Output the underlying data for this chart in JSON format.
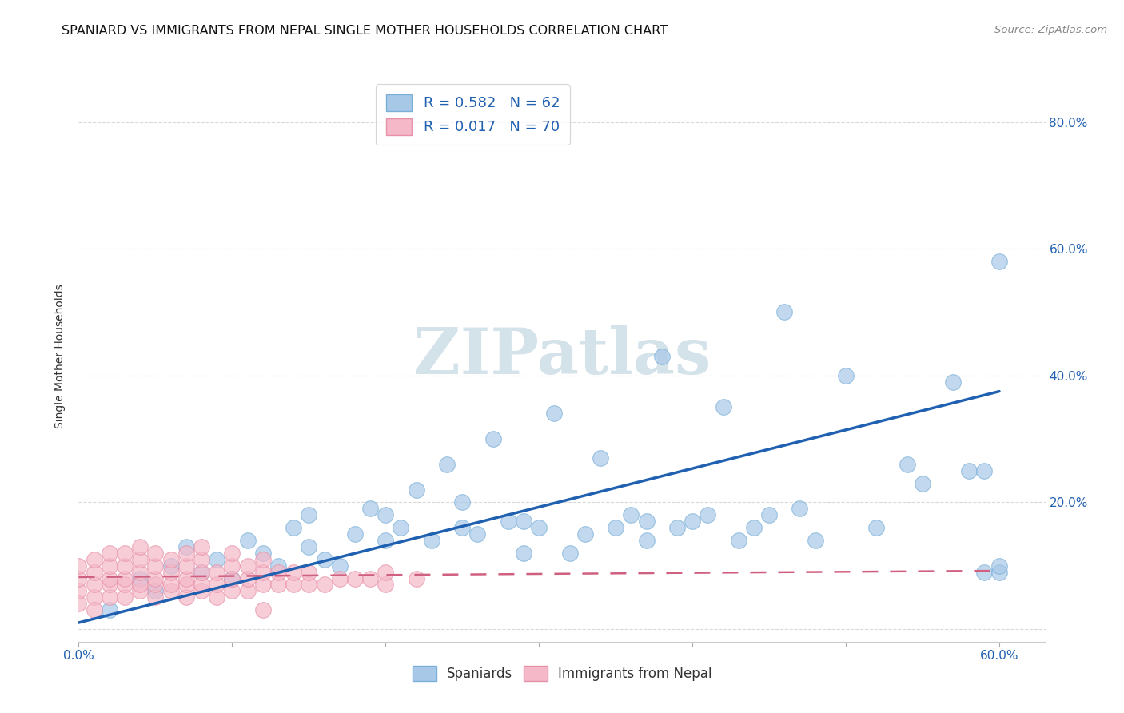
{
  "title": "SPANIARD VS IMMIGRANTS FROM NEPAL SINGLE MOTHER HOUSEHOLDS CORRELATION CHART",
  "source": "Source: ZipAtlas.com",
  "ylabel": "Single Mother Households",
  "xlim": [
    0.0,
    0.63
  ],
  "ylim": [
    -0.02,
    0.88
  ],
  "xticks": [
    0.0,
    0.1,
    0.2,
    0.3,
    0.4,
    0.5,
    0.6
  ],
  "yticks": [
    0.0,
    0.2,
    0.4,
    0.6,
    0.8
  ],
  "xtick_labels": [
    "0.0%",
    "",
    "",
    "",
    "",
    "",
    "60.0%"
  ],
  "ytick_labels_right": [
    "",
    "20.0%",
    "40.0%",
    "60.0%",
    "80.0%"
  ],
  "legend_labels": [
    "Spaniards",
    "Immigrants from Nepal"
  ],
  "legend_r": [
    "R = 0.582",
    "R = 0.017"
  ],
  "legend_n": [
    "N = 62",
    "N = 70"
  ],
  "blue_color": "#a8c8e8",
  "blue_edge_color": "#7ab0d8",
  "pink_color": "#f4b8c8",
  "pink_edge_color": "#e890a8",
  "blue_line_color": "#2060b0",
  "pink_line_color": "#d06080",
  "watermark_color": "#d0dfe8",
  "blue_scatter_x": [
    0.02,
    0.04,
    0.05,
    0.06,
    0.07,
    0.08,
    0.09,
    0.1,
    0.11,
    0.12,
    0.13,
    0.14,
    0.15,
    0.15,
    0.16,
    0.17,
    0.18,
    0.19,
    0.2,
    0.2,
    0.21,
    0.22,
    0.23,
    0.24,
    0.25,
    0.25,
    0.26,
    0.27,
    0.28,
    0.29,
    0.29,
    0.3,
    0.31,
    0.32,
    0.33,
    0.34,
    0.35,
    0.36,
    0.37,
    0.37,
    0.38,
    0.39,
    0.4,
    0.41,
    0.42,
    0.43,
    0.44,
    0.45,
    0.46,
    0.47,
    0.48,
    0.5,
    0.52,
    0.54,
    0.55,
    0.57,
    0.58,
    0.59,
    0.59,
    0.6,
    0.6,
    0.6
  ],
  "blue_scatter_y": [
    0.03,
    0.08,
    0.06,
    0.1,
    0.13,
    0.09,
    0.11,
    0.08,
    0.14,
    0.12,
    0.1,
    0.16,
    0.13,
    0.18,
    0.11,
    0.1,
    0.15,
    0.19,
    0.14,
    0.18,
    0.16,
    0.22,
    0.14,
    0.26,
    0.16,
    0.2,
    0.15,
    0.3,
    0.17,
    0.12,
    0.17,
    0.16,
    0.34,
    0.12,
    0.15,
    0.27,
    0.16,
    0.18,
    0.14,
    0.17,
    0.43,
    0.16,
    0.17,
    0.18,
    0.35,
    0.14,
    0.16,
    0.18,
    0.5,
    0.19,
    0.14,
    0.4,
    0.16,
    0.26,
    0.23,
    0.39,
    0.25,
    0.09,
    0.25,
    0.58,
    0.09,
    0.1
  ],
  "pink_scatter_x": [
    0.0,
    0.0,
    0.0,
    0.0,
    0.01,
    0.01,
    0.01,
    0.01,
    0.01,
    0.02,
    0.02,
    0.02,
    0.02,
    0.02,
    0.03,
    0.03,
    0.03,
    0.03,
    0.03,
    0.04,
    0.04,
    0.04,
    0.04,
    0.04,
    0.05,
    0.05,
    0.05,
    0.05,
    0.05,
    0.06,
    0.06,
    0.06,
    0.06,
    0.07,
    0.07,
    0.07,
    0.07,
    0.07,
    0.08,
    0.08,
    0.08,
    0.08,
    0.09,
    0.09,
    0.09,
    0.1,
    0.1,
    0.1,
    0.1,
    0.11,
    0.11,
    0.11,
    0.12,
    0.12,
    0.12,
    0.13,
    0.13,
    0.14,
    0.14,
    0.15,
    0.15,
    0.16,
    0.17,
    0.18,
    0.19,
    0.2,
    0.2,
    0.22,
    0.08,
    0.12
  ],
  "pink_scatter_y": [
    0.04,
    0.06,
    0.08,
    0.1,
    0.05,
    0.07,
    0.09,
    0.11,
    0.03,
    0.05,
    0.07,
    0.08,
    0.1,
    0.12,
    0.05,
    0.07,
    0.08,
    0.1,
    0.12,
    0.06,
    0.07,
    0.09,
    0.11,
    0.13,
    0.05,
    0.07,
    0.08,
    0.1,
    0.12,
    0.06,
    0.07,
    0.09,
    0.11,
    0.05,
    0.07,
    0.08,
    0.1,
    0.12,
    0.06,
    0.07,
    0.09,
    0.11,
    0.05,
    0.07,
    0.09,
    0.06,
    0.08,
    0.1,
    0.12,
    0.06,
    0.08,
    0.1,
    0.07,
    0.09,
    0.11,
    0.07,
    0.09,
    0.07,
    0.09,
    0.07,
    0.09,
    0.07,
    0.08,
    0.08,
    0.08,
    0.07,
    0.09,
    0.08,
    0.13,
    0.03
  ],
  "blue_line_x": [
    0.0,
    0.6
  ],
  "blue_line_y": [
    0.01,
    0.375
  ],
  "pink_line_x": [
    0.0,
    0.6
  ],
  "pink_line_y": [
    0.082,
    0.092
  ],
  "background_color": "#ffffff",
  "grid_color": "#d0d0d0",
  "title_fontsize": 11.5,
  "source_fontsize": 9.5,
  "axis_label_fontsize": 10,
  "tick_fontsize": 11,
  "legend_fontsize": 13
}
